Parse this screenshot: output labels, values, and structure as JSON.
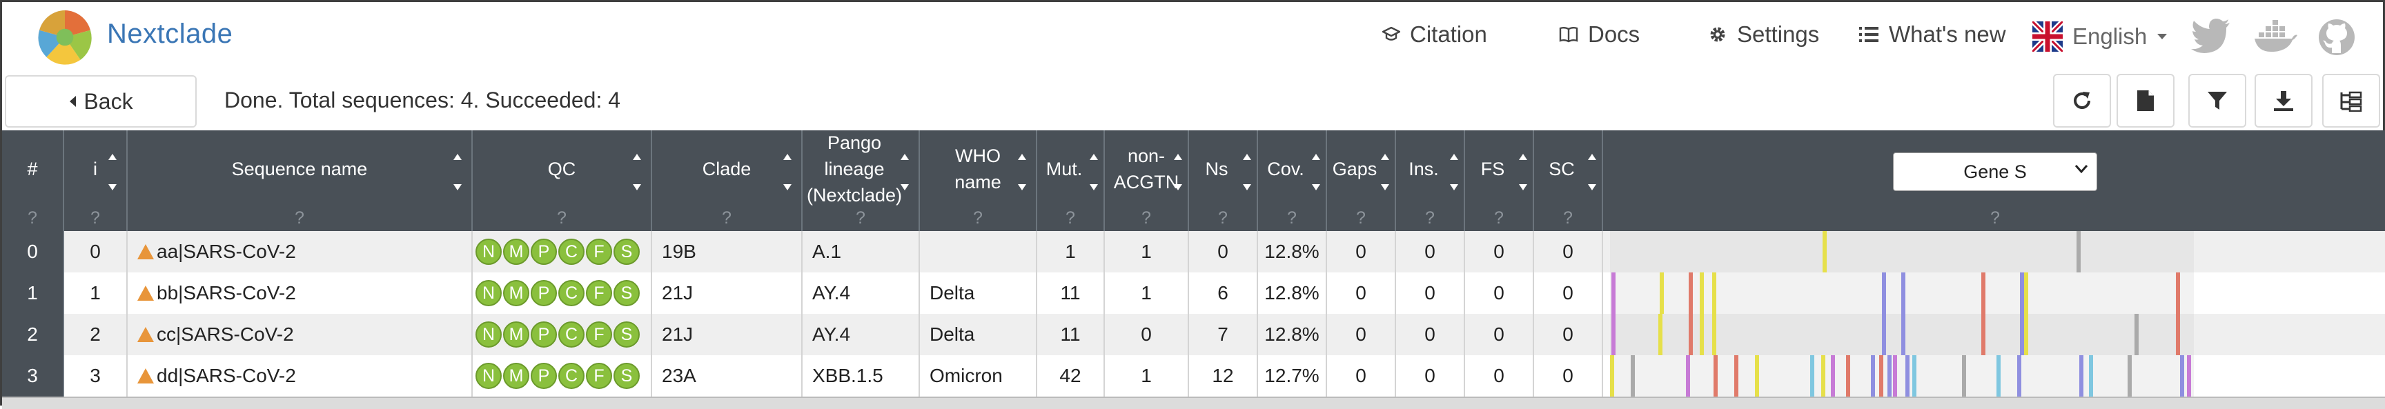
{
  "app": {
    "name": "Nextclade"
  },
  "nav": {
    "citation": "Citation",
    "docs": "Docs",
    "settings": "Settings",
    "whats_new": "What's new",
    "language": "English"
  },
  "status": {
    "back_label": "Back",
    "message": "Done. Total sequences: 4. Succeeded: 4"
  },
  "table": {
    "columns": [
      {
        "key": "row",
        "label": "#",
        "sortable": false
      },
      {
        "key": "i",
        "label": "i",
        "sortable": true
      },
      {
        "key": "name",
        "label": "Sequence name",
        "sortable": true
      },
      {
        "key": "qc",
        "label": "QC",
        "sortable": true
      },
      {
        "key": "clade",
        "label": "Clade",
        "sortable": true
      },
      {
        "key": "pango",
        "label": "Pango lineage (Nextclade)",
        "sortable": true
      },
      {
        "key": "who",
        "label": "WHO name",
        "sortable": true
      },
      {
        "key": "mut",
        "label": "Mut.",
        "sortable": true
      },
      {
        "key": "nonacgtn",
        "label": "non-ACGTN",
        "sortable": true
      },
      {
        "key": "ns",
        "label": "Ns",
        "sortable": true
      },
      {
        "key": "cov",
        "label": "Cov.",
        "sortable": true
      },
      {
        "key": "gaps",
        "label": "Gaps",
        "sortable": true
      },
      {
        "key": "ins",
        "label": "Ins.",
        "sortable": true
      },
      {
        "key": "fs",
        "label": "FS",
        "sortable": true
      },
      {
        "key": "sc",
        "label": "SC",
        "sortable": true
      }
    ],
    "help_mark": "?",
    "gene_selector": {
      "value": "Gene S"
    },
    "qc_badges": [
      "N",
      "M",
      "P",
      "C",
      "F",
      "S"
    ],
    "rows": [
      {
        "row": "0",
        "i": "0",
        "name": "aa|SARS-CoV-2",
        "clade": "19B",
        "pango": "A.1",
        "who": "",
        "mut": "1",
        "nonacgtn": "1",
        "ns": "0",
        "cov": "12.8%",
        "gaps": "0",
        "ins": "0",
        "fs": "0",
        "sc": "0"
      },
      {
        "row": "1",
        "i": "1",
        "name": "bb|SARS-CoV-2",
        "clade": "21J",
        "pango": "AY.4",
        "who": "Delta",
        "mut": "11",
        "nonacgtn": "1",
        "ns": "6",
        "cov": "12.8%",
        "gaps": "0",
        "ins": "0",
        "fs": "0",
        "sc": "0"
      },
      {
        "row": "2",
        "i": "2",
        "name": "cc|SARS-CoV-2",
        "clade": "21J",
        "pango": "AY.4",
        "who": "Delta",
        "mut": "11",
        "nonacgtn": "0",
        "ns": "7",
        "cov": "12.8%",
        "gaps": "0",
        "ins": "0",
        "fs": "0",
        "sc": "0"
      },
      {
        "row": "3",
        "i": "3",
        "name": "dd|SARS-CoV-2",
        "clade": "23A",
        "pango": "XBB.1.5",
        "who": "Omicron",
        "mut": "42",
        "nonacgtn": "1",
        "ns": "12",
        "cov": "12.7%",
        "gaps": "0",
        "ins": "0",
        "fs": "0",
        "sc": "0"
      }
    ]
  },
  "colors": {
    "header_bg": "#495057",
    "qc_good": "#8ac03d",
    "warning": "#e8953a",
    "row_alt": "#efefef"
  }
}
